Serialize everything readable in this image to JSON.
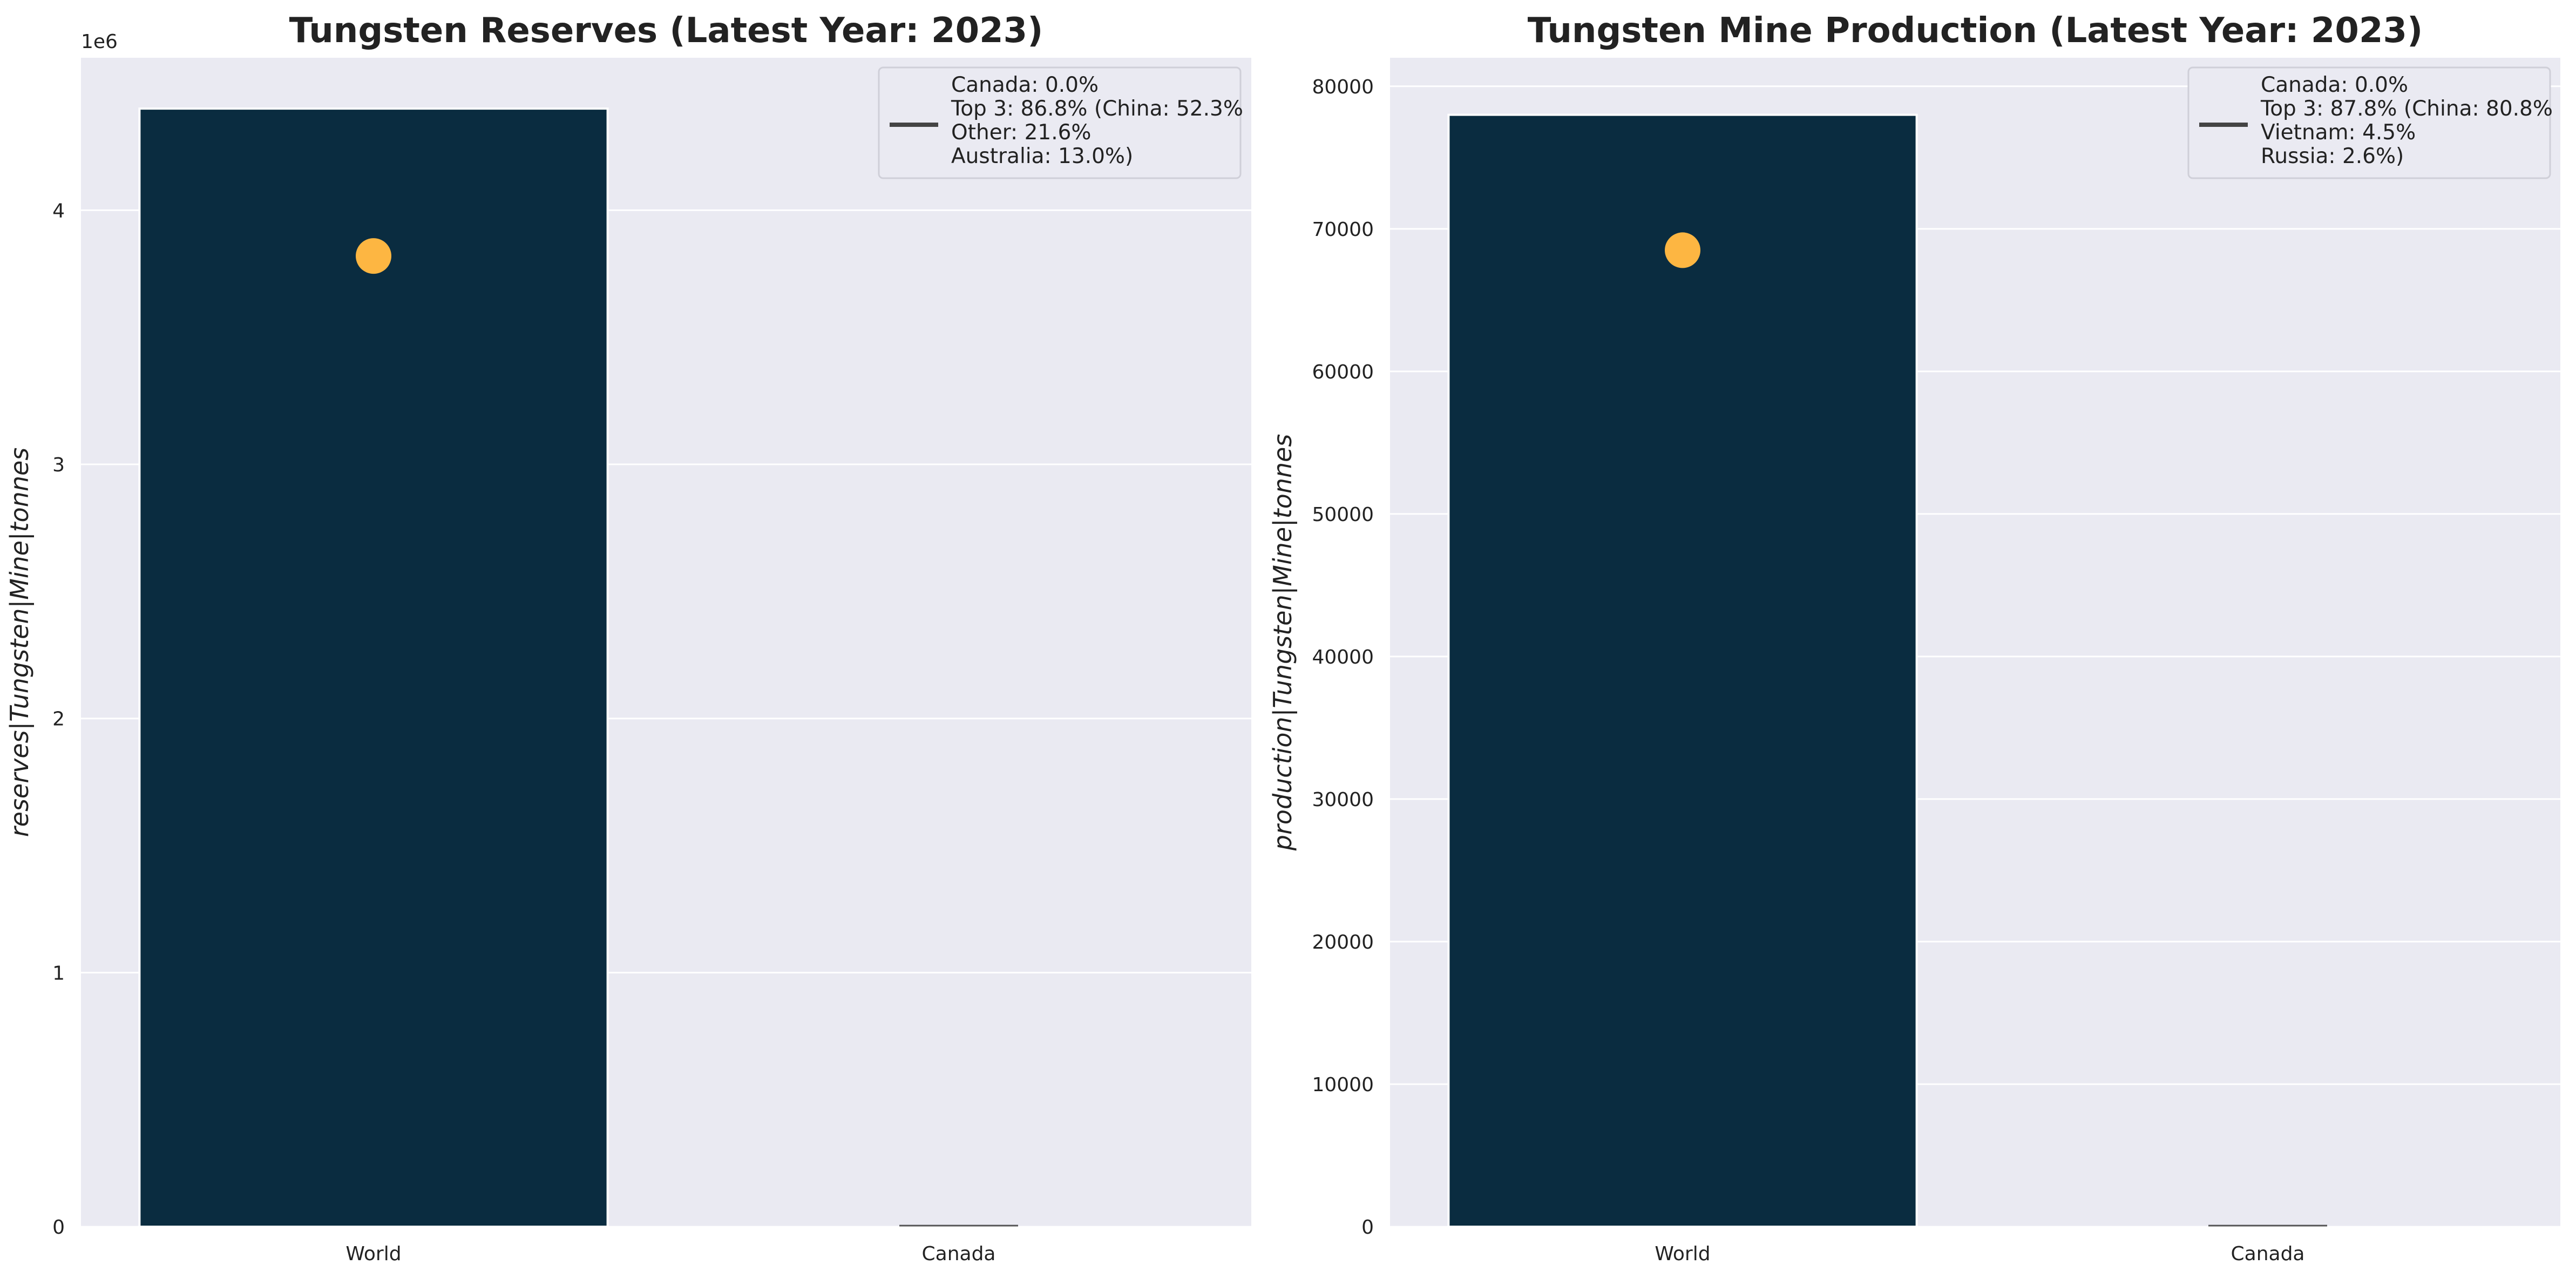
{
  "chart_data": [
    {
      "type": "bar",
      "title": "Tungsten Reserves (Latest Year: 2023)",
      "xlabel": "",
      "ylabel": "reserves|Tungsten|Mine|tonnes",
      "offset_label": "1e6",
      "categories": [
        "World",
        "Canada"
      ],
      "values": [
        4400000,
        0
      ],
      "ylim": [
        0,
        4600000
      ],
      "yticks": [
        0,
        1000000,
        2000000,
        3000000,
        4000000
      ],
      "ytick_labels": [
        "0",
        "1",
        "2",
        "3",
        "4"
      ],
      "marker": {
        "category": "World",
        "value": 3820000
      },
      "grid": true,
      "legend_position": "top-right",
      "legend_lines": [
        "Canada: 0.0%",
        "Top 3: 86.8% (China: 52.3%",
        "Other: 21.6%",
        "Australia: 13.0%)"
      ]
    },
    {
      "type": "bar",
      "title": "Tungsten Mine Production (Latest Year: 2023)",
      "xlabel": "",
      "ylabel": "production|Tungsten|Mine|tonnes",
      "offset_label": "",
      "categories": [
        "World",
        "Canada"
      ],
      "values": [
        78000,
        0
      ],
      "ylim": [
        0,
        82000
      ],
      "yticks": [
        0,
        10000,
        20000,
        30000,
        40000,
        50000,
        60000,
        70000,
        80000
      ],
      "ytick_labels": [
        "0",
        "10000",
        "20000",
        "30000",
        "40000",
        "50000",
        "60000",
        "70000",
        "80000"
      ],
      "marker": {
        "category": "World",
        "value": 68500
      },
      "grid": true,
      "legend_position": "top-right",
      "legend_lines": [
        "Canada: 0.0%",
        "Top 3: 87.8% (China: 80.8%",
        "Vietnam: 4.5%",
        "Russia: 2.6%)"
      ]
    }
  ],
  "colors": {
    "bar": "#0a2c40",
    "marker": "#fdb642",
    "panel_bg": "#eaeaf2",
    "grid": "#ffffff",
    "legend_line": "#444444"
  }
}
